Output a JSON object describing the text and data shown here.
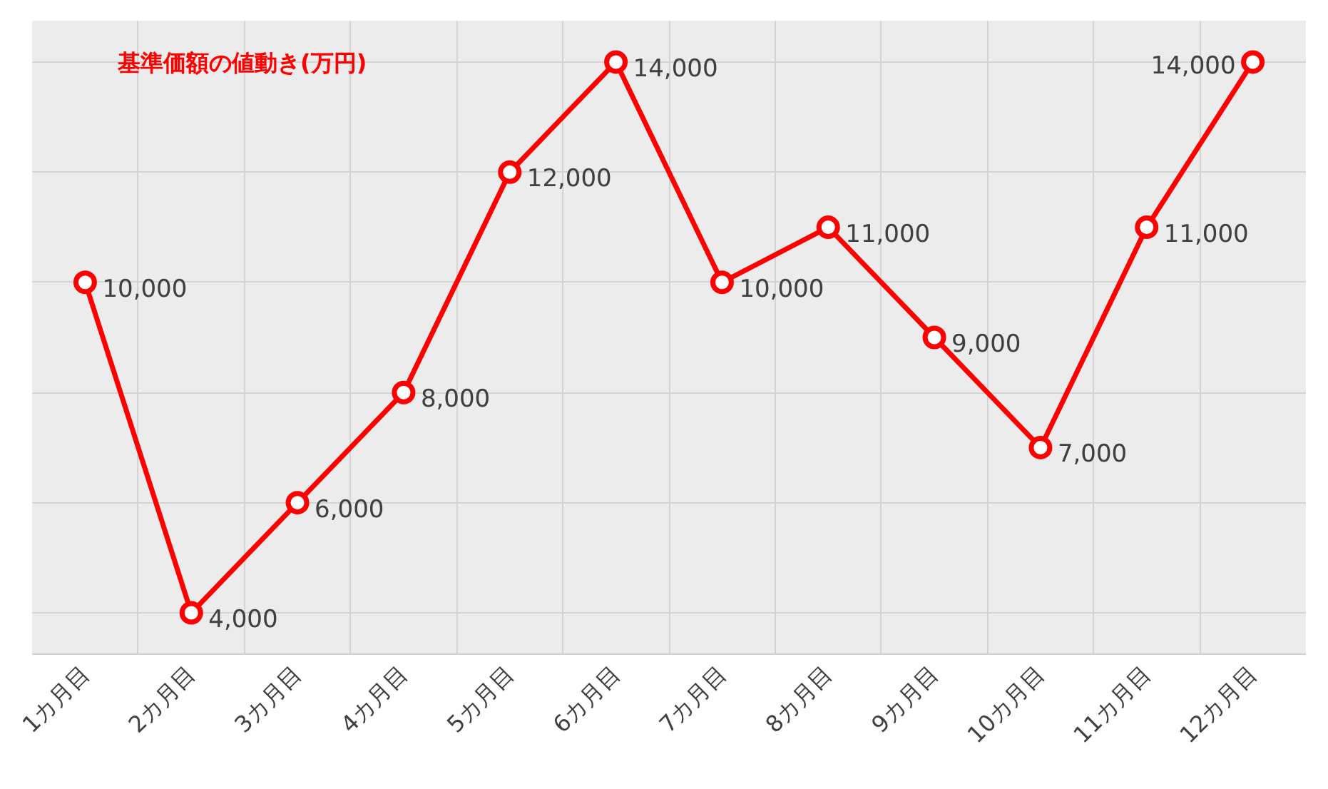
{
  "chart_data": {
    "type": "line",
    "title": "基準価額の値動き(万円)",
    "categories": [
      "1カ月目",
      "2カ月目",
      "3カ月目",
      "4カ月目",
      "5カ月目",
      "6カ月目",
      "7カ月目",
      "8カ月目",
      "9カ月目",
      "10カ月目",
      "11カ月目",
      "12カ月目"
    ],
    "series": [
      {
        "color": "#ff0000",
        "values": [
          10000,
          4000,
          6000,
          8000,
          12000,
          14000,
          10000,
          11000,
          9000,
          7000,
          11000,
          14000
        ],
        "value_labels": [
          "10,000",
          "4,000",
          "6,000",
          "8,000",
          "12,000",
          "14,000",
          "10,000",
          "11,000",
          "9,000",
          "7,000",
          "11,000",
          "14,000"
        ]
      }
    ],
    "tick_labels": "x",
    "grid": true,
    "marker": "circle",
    "line_style": "solid"
  }
}
